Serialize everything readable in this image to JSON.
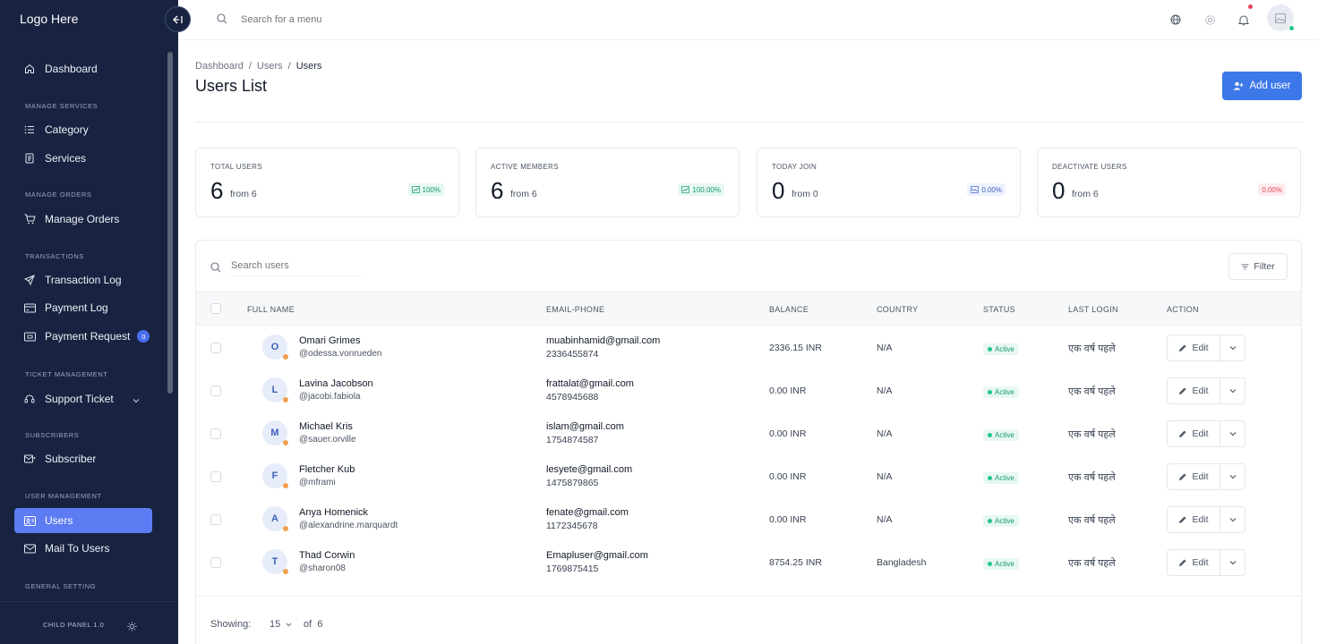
{
  "app": {
    "logo": "Logo Here",
    "version": "CHILD PANEL 1.0"
  },
  "topbar": {
    "search_placeholder": "Search for a menu"
  },
  "sidebar": {
    "items": [
      {
        "type": "item",
        "label": "Dashboard",
        "icon": "home-icon"
      },
      {
        "type": "section",
        "label": "MANAGE SERVICES"
      },
      {
        "type": "item",
        "label": "Category",
        "icon": "list-icon"
      },
      {
        "type": "item",
        "label": "Services",
        "icon": "document-icon"
      },
      {
        "type": "section",
        "label": "MANAGE ORDERS"
      },
      {
        "type": "item",
        "label": "Manage Orders",
        "icon": "cart-icon"
      },
      {
        "type": "section",
        "label": "TRANSACTIONS"
      },
      {
        "type": "item",
        "label": "Transaction Log",
        "icon": "send-icon"
      },
      {
        "type": "item",
        "label": "Payment Log",
        "icon": "card-icon"
      },
      {
        "type": "item",
        "label": "Payment Request",
        "icon": "wallet-icon",
        "badge": "0"
      },
      {
        "type": "section",
        "label": "TICKET MANAGEMENT"
      },
      {
        "type": "item",
        "label": "Support Ticket",
        "icon": "headset-icon",
        "chevron": true
      },
      {
        "type": "section",
        "label": "SUBSCRIBERS"
      },
      {
        "type": "item",
        "label": "Subscriber",
        "icon": "subscriber-icon"
      },
      {
        "type": "section",
        "label": "USER MANAGEMENT"
      },
      {
        "type": "item",
        "label": "Users",
        "icon": "users-icon",
        "active": true
      },
      {
        "type": "item",
        "label": "Mail To Users",
        "icon": "mail-icon"
      },
      {
        "type": "section",
        "label": "GENERAL SETTING"
      }
    ]
  },
  "header": {
    "breadcrumb": [
      "Dashboard",
      "Users",
      "Users"
    ],
    "title": "Users List",
    "add_user_label": "Add user"
  },
  "stats": [
    {
      "label": "TOTAL USERS",
      "value": "6",
      "from": "from 6",
      "pct": "100%",
      "trend": "up"
    },
    {
      "label": "ACTIVE MEMBERS",
      "value": "6",
      "from": "from 6",
      "pct": "100.00%",
      "trend": "up"
    },
    {
      "label": "TODAY JOIN",
      "value": "0",
      "from": "from 0",
      "pct": "0.00%",
      "trend": "flat"
    },
    {
      "label": "DEACTIVATE USERS",
      "value": "0",
      "from": "from 6",
      "pct": "0.00%",
      "trend": "down"
    }
  ],
  "table": {
    "search_placeholder": "Search users",
    "filter_label": "Filter",
    "columns": [
      "FULL NAME",
      "EMAIL-PHONE",
      "BALANCE",
      "COUNTRY",
      "STATUS",
      "LAST LOGIN",
      "ACTION"
    ],
    "edit_label": "Edit",
    "rows": [
      {
        "initial": "O",
        "name": "Omari Grimes",
        "handle": "@odessa.vonrueden",
        "email": "muabinhamid@gmail.com",
        "phone": "2336455874",
        "balance": "2336.15 INR",
        "country": "N/A",
        "status": "Active",
        "last_login": "एक वर्ष पहले"
      },
      {
        "initial": "L",
        "name": "Lavina Jacobson",
        "handle": "@jacobi.fabiola",
        "email": "frattalat@gmail.com",
        "phone": "4578945688",
        "balance": "0.00 INR",
        "country": "N/A",
        "status": "Active",
        "last_login": "एक वर्ष पहले"
      },
      {
        "initial": "M",
        "name": "Michael Kris",
        "handle": "@sauer.orville",
        "email": "islam@gmail.com",
        "phone": "1754874587",
        "balance": "0.00 INR",
        "country": "N/A",
        "status": "Active",
        "last_login": "एक वर्ष पहले"
      },
      {
        "initial": "F",
        "name": "Fletcher Kub",
        "handle": "@mframi",
        "email": "lesyete@gmail.com",
        "phone": "1475879865",
        "balance": "0.00 INR",
        "country": "N/A",
        "status": "Active",
        "last_login": "एक वर्ष पहले"
      },
      {
        "initial": "A",
        "name": "Anya Homenick",
        "handle": "@alexandrine.marquardt",
        "email": "fenate@gmail.com",
        "phone": "1172345678",
        "balance": "0.00 INR",
        "country": "N/A",
        "status": "Active",
        "last_login": "एक वर्ष पहले"
      },
      {
        "initial": "T",
        "name": "Thad Corwin",
        "handle": "@sharon08",
        "email": "Emapluser@gmail.com",
        "phone": "1769875415",
        "balance": "8754.25 INR",
        "country": "Bangladesh",
        "status": "Active",
        "last_login": "एक वर्ष पहले"
      }
    ]
  },
  "pagination": {
    "showing_label": "Showing:",
    "per_page": "15",
    "of_label": "of",
    "total": "6"
  },
  "colors": {
    "sidebar_bg": "#182341",
    "accent": "#3c78e8",
    "active_nav": "#5d7cf3",
    "success": "#159a6c",
    "danger": "#e0435b"
  }
}
